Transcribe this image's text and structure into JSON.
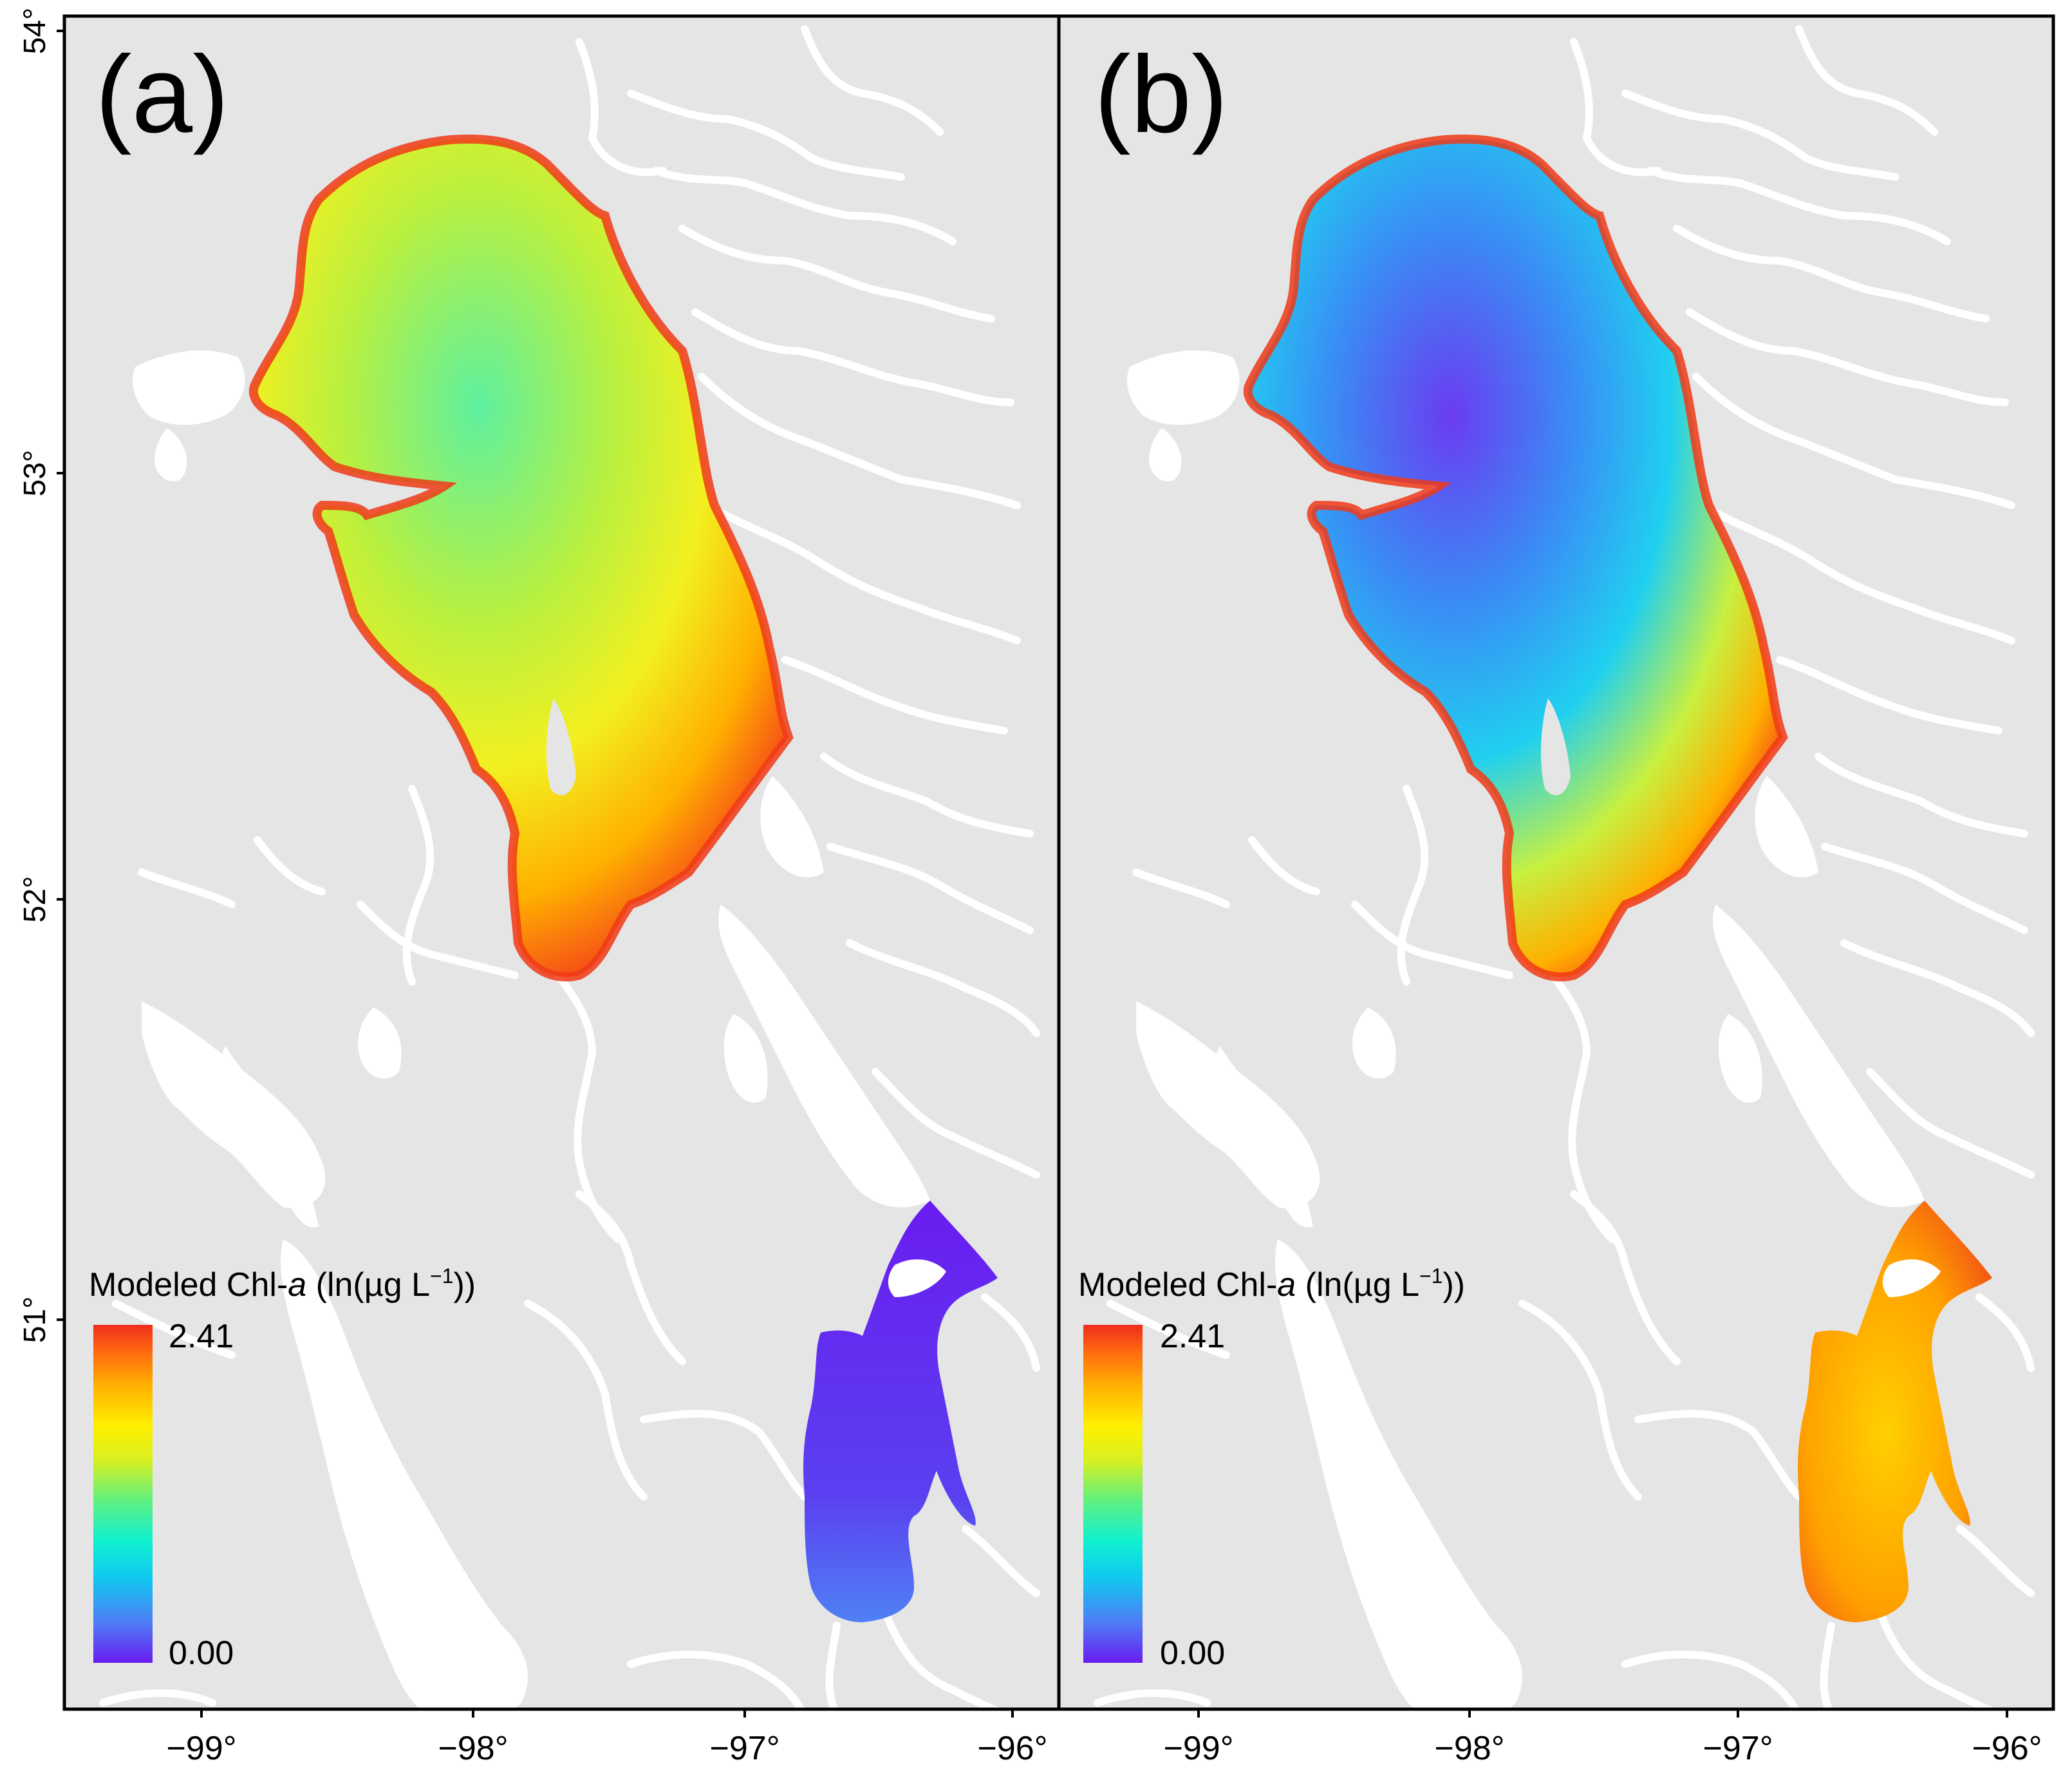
{
  "panels": [
    {
      "label": "(a)",
      "legend": {
        "title_main": "Modeled Chl-",
        "title_italic": "a",
        "title_unit_start": " (ln(µg L",
        "title_sup": "−1",
        "title_unit_end": "))",
        "max_label": "2.41",
        "min_label": "0.00"
      },
      "north_basin_value": "high (orange-red margins, yellow-green interior)",
      "south_basin_value": "low (purple-blue)"
    },
    {
      "label": "(b)",
      "legend": {
        "title_main": "Modeled Chl-",
        "title_italic": "a",
        "title_unit_start": " (ln(µg L",
        "title_sup": "−1",
        "title_unit_end": "))",
        "max_label": "2.41",
        "min_label": "0.00"
      },
      "north_basin_value": "low (blue-purple interior, orange-red margins)",
      "south_basin_value": "high (orange-red)"
    }
  ],
  "axes": {
    "y_ticks": [
      "54°",
      "53°",
      "52°",
      "51°"
    ],
    "x_ticks": [
      "−99°",
      "−98°",
      "−97°",
      "−96°"
    ]
  },
  "colors": {
    "land": "#e5e5e5",
    "water_features": "#ffffff",
    "frame": "#000000",
    "scale": [
      "#6a1cf0",
      "#4f7df5",
      "#10c8f0",
      "#10f0d0",
      "#60f080",
      "#d8f020",
      "#fff000",
      "#ffb000",
      "#ff6a10",
      "#f02d1a"
    ]
  }
}
